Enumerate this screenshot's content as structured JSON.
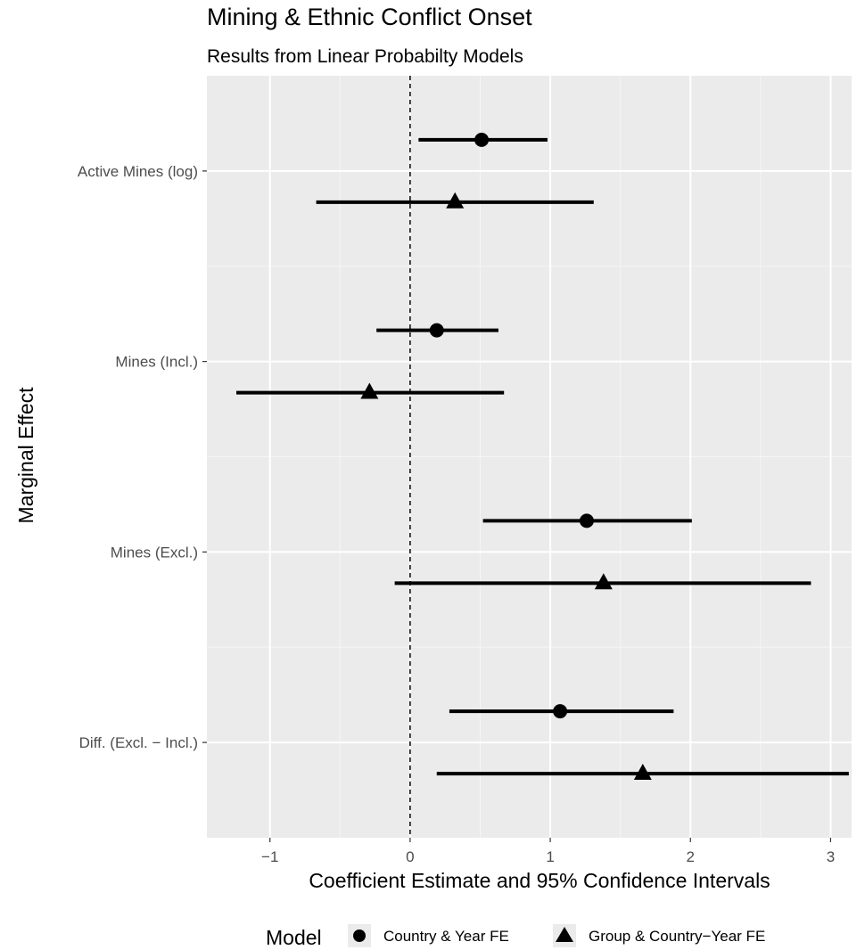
{
  "chart_data": {
    "type": "scatter",
    "title": "Mining & Ethnic Conflict Onset",
    "subtitle": "Results from Linear Probabilty Models",
    "xlabel": "Coefficient Estimate and 95% Confidence Intervals",
    "ylabel": "Marginal Effect",
    "xlim": [
      -1.45,
      3.15
    ],
    "xticks": [
      -1,
      0,
      1,
      2,
      3
    ],
    "xtick_labels": [
      "−1",
      "0",
      "1",
      "2",
      "3"
    ],
    "reference_line": 0,
    "grid": true,
    "legend_position": "bottom",
    "legend_title": "Model",
    "categories": [
      "Active Mines (log)",
      "Mines (Incl.)",
      "Mines (Excl.)",
      "Diff. (Excl. − Incl.)"
    ],
    "series": [
      {
        "name": "Country & Year FE",
        "marker": "circle",
        "estimates": [
          0.51,
          0.19,
          1.26,
          1.07
        ],
        "lower": [
          0.06,
          -0.24,
          0.52,
          0.28
        ],
        "upper": [
          0.98,
          0.63,
          2.01,
          1.88
        ]
      },
      {
        "name": "Group & Country−Year FE",
        "marker": "triangle",
        "estimates": [
          0.32,
          -0.29,
          1.38,
          1.66
        ],
        "lower": [
          -0.67,
          -1.24,
          -0.11,
          0.19
        ],
        "upper": [
          1.31,
          0.67,
          2.86,
          3.13
        ]
      }
    ]
  }
}
